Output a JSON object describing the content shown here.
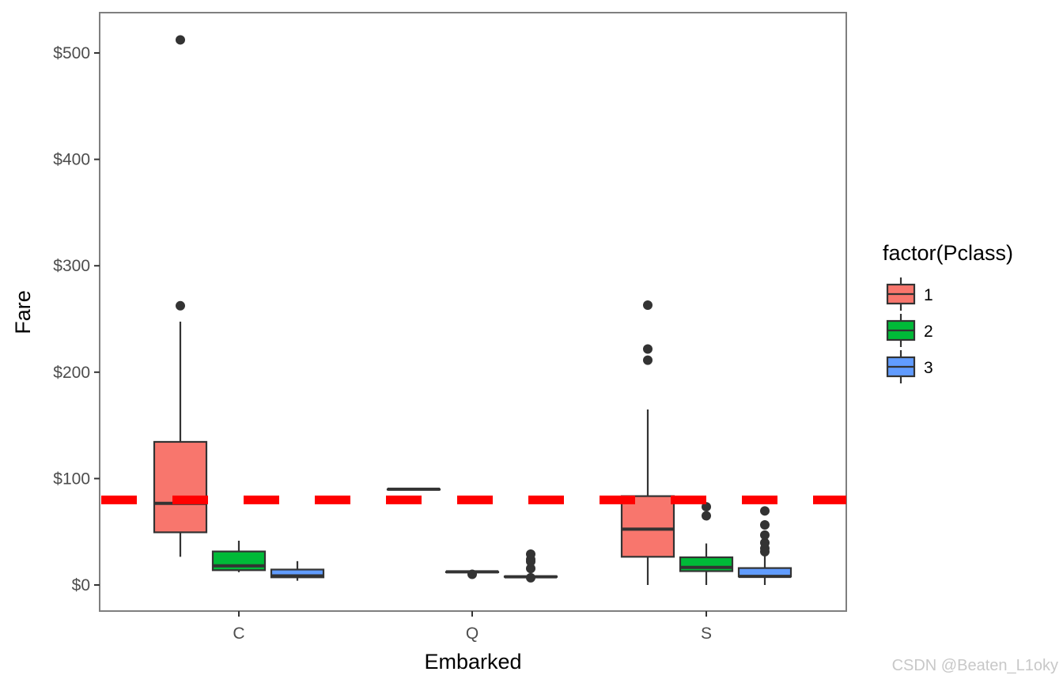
{
  "chart_data": {
    "type": "boxplot",
    "xlabel": "Embarked",
    "ylabel": "Fare",
    "categories": [
      "C",
      "Q",
      "S"
    ],
    "ylim": [
      -25,
      525
    ],
    "yticks": [
      0,
      100,
      200,
      300,
      400,
      500
    ],
    "ytick_labels": [
      "$0",
      "$100",
      "$200",
      "$300",
      "$400",
      "$500"
    ],
    "legend": {
      "title": "factor(Pclass)",
      "position": "right",
      "entries": [
        "1",
        "2",
        "3"
      ]
    },
    "reference_line": {
      "y": 80,
      "color": "#ff0000",
      "style": "dashed"
    },
    "series": [
      {
        "name": "1",
        "color": "#F8766D",
        "boxes": [
          {
            "category": "C",
            "lower_whisker": 26.5,
            "q1": 49.5,
            "median": 76.7,
            "q3": 134.5,
            "upper_whisker": 247.5,
            "outliers": [
              262.4,
              512.3
            ]
          },
          {
            "category": "Q",
            "lower_whisker": 90.0,
            "q1": 90.0,
            "median": 90.0,
            "q3": 90.0,
            "upper_whisker": 90.0,
            "outliers": []
          },
          {
            "category": "S",
            "lower_whisker": 0,
            "q1": 26.5,
            "median": 52.5,
            "q3": 83.5,
            "upper_whisker": 164.9,
            "outliers": [
              211.3,
              221.8,
              263.0
            ]
          }
        ]
      },
      {
        "name": "2",
        "color": "#00BA38",
        "boxes": [
          {
            "category": "C",
            "lower_whisker": 12.0,
            "q1": 13.9,
            "median": 18.0,
            "q3": 31.5,
            "upper_whisker": 41.6,
            "outliers": []
          },
          {
            "category": "Q",
            "lower_whisker": 12.35,
            "q1": 12.35,
            "median": 12.35,
            "q3": 12.35,
            "upper_whisker": 12.35,
            "outliers": [
              10.0
            ]
          },
          {
            "category": "S",
            "lower_whisker": 0,
            "q1": 13.0,
            "median": 16.5,
            "q3": 26.0,
            "upper_whisker": 39.0,
            "outliers": [
              65.0,
              73.5
            ]
          }
        ]
      },
      {
        "name": "3",
        "color": "#619CFF",
        "boxes": [
          {
            "category": "C",
            "lower_whisker": 4.0,
            "q1": 7.2,
            "median": 8.5,
            "q3": 14.5,
            "upper_whisker": 22.4,
            "outliers": []
          },
          {
            "category": "Q",
            "lower_whisker": 6.75,
            "q1": 7.75,
            "median": 7.75,
            "q3": 8.0,
            "upper_whisker": 8.5,
            "outliers": [
              6.75,
              15.5,
              22.0,
              24.0,
              29.0
            ]
          },
          {
            "category": "S",
            "lower_whisker": 0,
            "q1": 7.9,
            "median": 8.05,
            "q3": 15.9,
            "upper_whisker": 29.1,
            "outliers": [
              31.3,
              34.4,
              39.7,
              46.9,
              56.5,
              69.6
            ]
          }
        ]
      }
    ]
  },
  "watermark": "CSDN @Beaten_L1oky"
}
